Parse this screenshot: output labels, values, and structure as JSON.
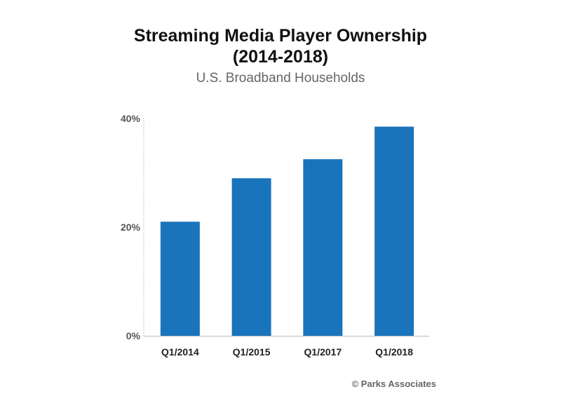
{
  "chart_data": {
    "type": "bar",
    "title": "Streaming Media Player Ownership",
    "title_line2": "(2014-2018)",
    "subtitle": "U.S. Broadband Households",
    "categories": [
      "Q1/2014",
      "Q1/2015",
      "Q1/2017",
      "Q1/2018"
    ],
    "values": [
      21,
      29,
      32.5,
      38.5
    ],
    "value_unit": "%",
    "ylim": [
      0,
      40
    ],
    "yticks": [
      {
        "value": 0,
        "label": "0%"
      },
      {
        "value": 20,
        "label": "20%"
      },
      {
        "value": 40,
        "label": "40%"
      }
    ],
    "xlabel": "",
    "ylabel": "",
    "grid": false,
    "bar_color": "#1a74bc"
  },
  "footer": {
    "credit": "© Parks Associates"
  }
}
